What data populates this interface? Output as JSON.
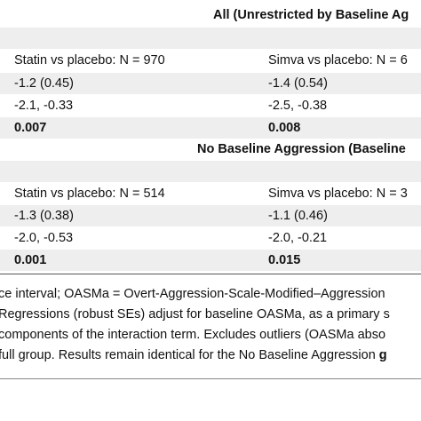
{
  "section1": {
    "header": "All (Unrestricted by Baseline Ag",
    "statin_label": "Statin vs placebo: N = 970",
    "simva_label": "Simva vs placebo: N = 6",
    "statin_estimate": "-1.2 (0.45)",
    "simva_estimate": "-1.4 (0.54)",
    "statin_ci": "-2.1, -0.33",
    "simva_ci": "-2.5, -0.38",
    "statin_p": "0.007",
    "simva_p": "0.008"
  },
  "section2": {
    "header": "No Baseline Aggression (Baseline",
    "statin_label": "Statin vs placebo: N = 514",
    "simva_label": "Simva vs placebo: N = 3",
    "statin_estimate": "-1.3 (0.38)",
    "simva_estimate": "-1.1 (0.46)",
    "statin_ci": "-2.0, -0.53",
    "simva_ci": "-2.0, -0.21",
    "statin_p": "0.001",
    "simva_p": "0.015"
  },
  "notes": {
    "line1": "ce interval; OASMa = Overt-Aggression-Scale-Modified–Aggression",
    "line2": "Regressions (robust SEs) adjust for baseline OASMa, as a primary s",
    "line3": "components of the interaction term. Excludes outliers (OASMa abso",
    "line4_a": " full group. Results remain identical for the No Baseline Aggression ",
    "line4_b": "g"
  }
}
